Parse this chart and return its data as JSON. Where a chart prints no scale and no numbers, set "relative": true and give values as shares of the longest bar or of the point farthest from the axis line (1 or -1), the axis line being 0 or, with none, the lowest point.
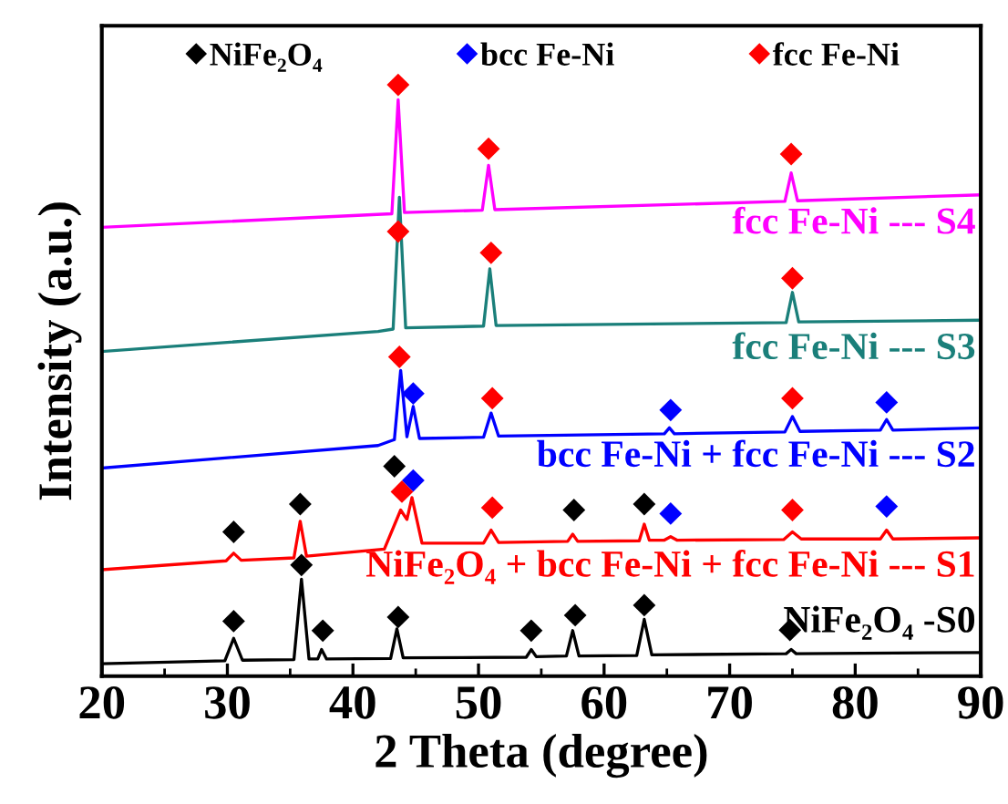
{
  "chart_data": {
    "type": "line",
    "xlabel": "2 Theta (degree)",
    "ylabel": "Intensity (a.u.)",
    "relative": true,
    "xlim": [
      20,
      90
    ],
    "xticks": [
      20,
      30,
      40,
      50,
      60,
      70,
      80,
      90
    ],
    "tick_labels": "x",
    "grid": false,
    "legend": "top",
    "line_style": "solid",
    "series": [
      {
        "name": "fcc Fe-Ni --- S4",
        "color": "#ff00ff",
        "marker": "none",
        "x": [
          20,
          43.1,
          43.6,
          44.1,
          50.3,
          50.8,
          51.3,
          74.4,
          74.9,
          75.4,
          90
        ],
        "values": [
          0.759,
          0.782,
          0.975,
          0.784,
          0.788,
          0.864,
          0.789,
          0.803,
          0.851,
          0.804,
          0.814
        ]
      },
      {
        "name": "fcc Fe-Ni --- S3",
        "color": "#1a7f7a",
        "marker": "none",
        "x": [
          20,
          42.0,
          43.2,
          43.7,
          44.2,
          50.4,
          50.9,
          51.4,
          74.5,
          75.0,
          75.5,
          90
        ],
        "values": [
          0.549,
          0.583,
          0.587,
          0.81,
          0.589,
          0.592,
          0.689,
          0.593,
          0.598,
          0.649,
          0.599,
          0.602
        ]
      },
      {
        "name": "bcc Fe-Ni + fcc Fe-Ni --- S2",
        "color": "#0000ff",
        "marker": "none",
        "x": [
          20,
          42.0,
          43.3,
          43.8,
          44.3,
          44.8,
          45.3,
          50.4,
          51.0,
          51.6,
          64.8,
          65.2,
          65.6,
          74.4,
          75.0,
          75.6,
          82.0,
          82.5,
          83.0,
          90
        ],
        "values": [
          0.352,
          0.39,
          0.4,
          0.517,
          0.405,
          0.456,
          0.402,
          0.404,
          0.445,
          0.406,
          0.41,
          0.42,
          0.41,
          0.413,
          0.439,
          0.414,
          0.416,
          0.434,
          0.416,
          0.42
        ]
      },
      {
        "name": "NiFe₂O₄ + bcc Fe-Ni + fcc Fe-Ni --- S1",
        "color": "#ff0000",
        "marker": "none",
        "x": [
          20,
          29.9,
          30.5,
          31.1,
          35.3,
          35.8,
          36.3,
          42.5,
          43.8,
          44.3,
          44.7,
          45.5,
          50.4,
          51.0,
          51.6,
          57.1,
          57.5,
          57.9,
          62.8,
          63.2,
          63.6,
          64.8,
          65.3,
          65.8,
          74.3,
          75.0,
          75.7,
          82.0,
          82.5,
          83.0,
          90
        ],
        "values": [
          0.18,
          0.195,
          0.208,
          0.196,
          0.2,
          0.262,
          0.203,
          0.215,
          0.281,
          0.265,
          0.302,
          0.225,
          0.225,
          0.247,
          0.226,
          0.228,
          0.24,
          0.228,
          0.229,
          0.257,
          0.23,
          0.23,
          0.236,
          0.23,
          0.231,
          0.244,
          0.232,
          0.232,
          0.247,
          0.232,
          0.234
        ]
      },
      {
        "name": "NiFe₂O₄ -S0",
        "color": "#000000",
        "marker": "none",
        "x": [
          20,
          29.8,
          30.5,
          31.2,
          35.3,
          35.9,
          36.5,
          37.2,
          37.5,
          37.9,
          43.0,
          43.5,
          44.0,
          53.8,
          54.2,
          54.6,
          57.0,
          57.5,
          58.0,
          62.6,
          63.2,
          63.8,
          74.5,
          74.9,
          75.3,
          90
        ],
        "values": [
          0.021,
          0.026,
          0.064,
          0.027,
          0.028,
          0.164,
          0.029,
          0.029,
          0.045,
          0.029,
          0.03,
          0.08,
          0.031,
          0.032,
          0.045,
          0.033,
          0.034,
          0.077,
          0.034,
          0.035,
          0.096,
          0.036,
          0.038,
          0.045,
          0.038,
          0.04
        ]
      },
      {
        "name": "NiFe₂O₄",
        "type": "scatter",
        "color": "#000000",
        "marker": "diamond",
        "x": [
          30.5,
          35.9,
          37.6,
          43.6,
          54.2,
          57.7,
          63.2,
          74.8,
          30.5,
          35.8,
          43.3,
          57.6,
          63.2
        ],
        "values": [
          0.093,
          0.188,
          0.077,
          0.1,
          0.077,
          0.103,
          0.12,
          0.078,
          0.244,
          0.291,
          0.355,
          0.281,
          0.291
        ]
      },
      {
        "name": "bcc Fe-Ni",
        "type": "scatter",
        "color": "#0000ff",
        "marker": "diamond",
        "x": [
          44.8,
          65.3,
          82.5,
          44.8,
          65.3,
          82.5
        ],
        "values": [
          0.331,
          0.275,
          0.287,
          0.478,
          0.45,
          0.463
        ]
      },
      {
        "name": "fcc Fe-Ni",
        "type": "scatter",
        "color": "#ff0000",
        "marker": "diamond",
        "x": [
          43.9,
          51.1,
          75.0,
          43.7,
          51.1,
          75.0,
          43.6,
          51.0,
          75.0,
          43.6,
          50.8,
          74.9
        ],
        "values": [
          0.312,
          0.285,
          0.281,
          0.54,
          0.47,
          0.47,
          0.752,
          0.716,
          0.673,
          1.0,
          0.892,
          0.883
        ]
      }
    ]
  }
}
